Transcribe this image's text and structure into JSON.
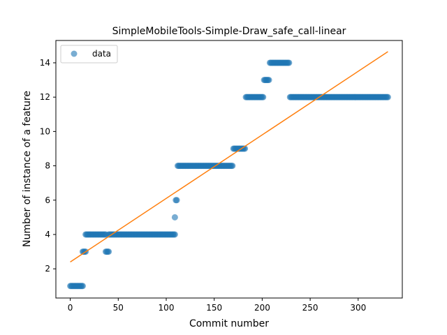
{
  "chart_data": {
    "type": "scatter",
    "title": "SimpleMobileTools-Simple-Draw_safe_call-linear",
    "xlabel": "Commit number",
    "ylabel": "Number of instance of a feature",
    "xlim": [
      -15,
      346
    ],
    "ylim": [
      0.3,
      15.3
    ],
    "xticks": [
      0,
      50,
      100,
      150,
      200,
      250,
      300
    ],
    "yticks": [
      2,
      4,
      6,
      8,
      10,
      12,
      14
    ],
    "grid": false,
    "legend": {
      "placement": "top-left",
      "entries": [
        "data"
      ]
    },
    "colors": {
      "data": "#1f77b4",
      "fit": "#ff7f0e"
    },
    "segments": [
      {
        "x_from": 0,
        "x_to": 13,
        "y": 1
      },
      {
        "x_from": 13,
        "x_to": 16,
        "y": 3
      },
      {
        "x_from": 16,
        "x_to": 37,
        "y": 4
      },
      {
        "x_from": 37,
        "x_to": 40,
        "y": 3
      },
      {
        "x_from": 40,
        "x_to": 109,
        "y": 4
      },
      {
        "x_from": 109,
        "x_to": 109,
        "y": 5
      },
      {
        "x_from": 110,
        "x_to": 111,
        "y": 6
      },
      {
        "x_from": 112,
        "x_to": 169,
        "y": 8
      },
      {
        "x_from": 170,
        "x_to": 182,
        "y": 9
      },
      {
        "x_from": 183,
        "x_to": 201,
        "y": 12
      },
      {
        "x_from": 202,
        "x_to": 207,
        "y": 13
      },
      {
        "x_from": 208,
        "x_to": 228,
        "y": 14
      },
      {
        "x_from": 229,
        "x_to": 331,
        "y": 12
      }
    ],
    "series": [
      {
        "name": "data",
        "type": "scatter"
      },
      {
        "type": "line",
        "x": [
          0,
          331
        ],
        "y": [
          2.4,
          14.65
        ]
      }
    ]
  }
}
